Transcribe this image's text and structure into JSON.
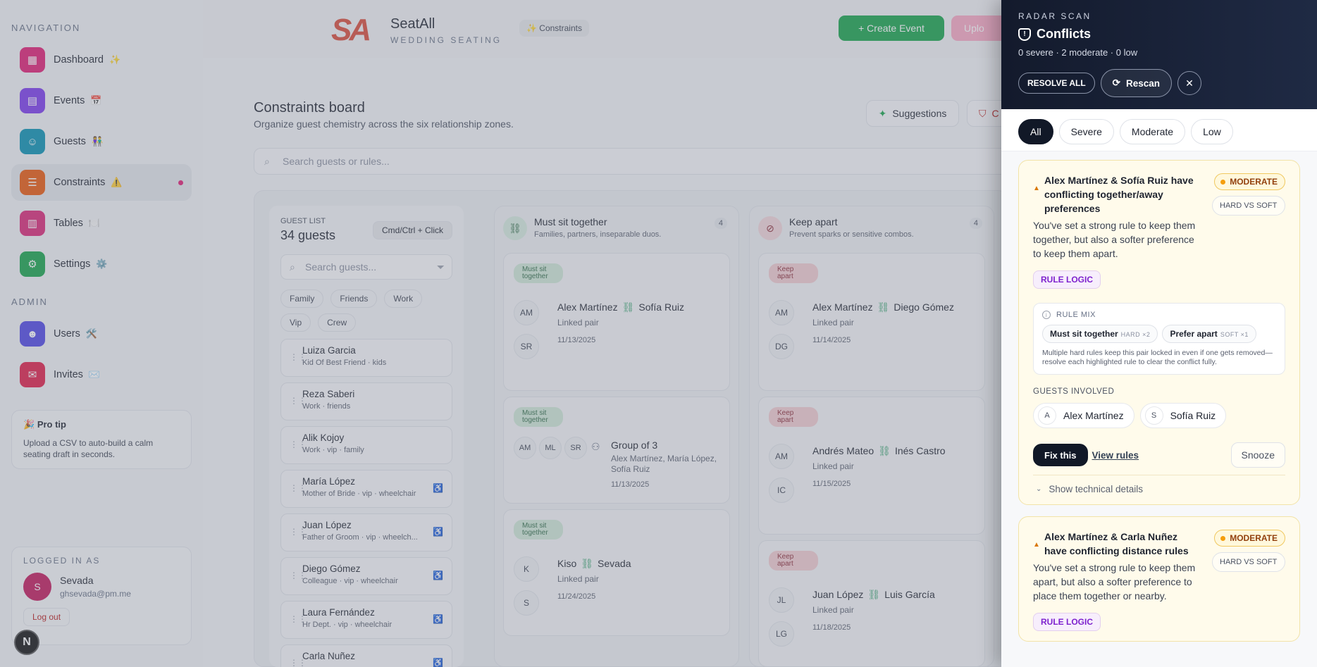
{
  "sidebar": {
    "nav_label": "NAVIGATION",
    "admin_label": "ADMIN",
    "items": [
      {
        "label": "Dashboard",
        "emoji": "✨",
        "icon": "dashboard-icon",
        "color": "#e11d74"
      },
      {
        "label": "Events",
        "emoji": "📅",
        "icon": "calendar-icon",
        "color": "#7c3aed"
      },
      {
        "label": "Guests",
        "emoji": "👫",
        "icon": "users-icon",
        "color": "#0891b2"
      },
      {
        "label": "Constraints",
        "emoji": "⚠️",
        "icon": "constraints-icon",
        "color": "#ea580c"
      },
      {
        "label": "Tables",
        "emoji": "🍽️",
        "icon": "table-icon",
        "color": "#db2777"
      },
      {
        "label": "Settings",
        "emoji": "⚙️",
        "icon": "settings-icon",
        "color": "#16a34a"
      }
    ],
    "admin_items": [
      {
        "label": "Users",
        "emoji": "🛠️",
        "icon": "user-admin-icon",
        "color": "#4f46e5"
      },
      {
        "label": "Invites",
        "emoji": "✉️",
        "icon": "mail-icon",
        "color": "#e11d48"
      }
    ],
    "tip_title": "Pro tip",
    "tip_text": "Upload a CSV to auto-build a calm seating draft in seconds.",
    "logged_label": "LOGGED IN AS",
    "user_initial": "S",
    "user_name": "Sevada",
    "user_email": "ghsevada@pm.me",
    "logout_label": "Log out",
    "n_badge": "N"
  },
  "header": {
    "logo_mark": "SA",
    "app_name": "SeatAll",
    "app_sub": "WEDDING SEATING",
    "crumb": "✨ Constraints",
    "create_label": "+ Create Event",
    "upload_label": "Uplo"
  },
  "board": {
    "title": "Constraints board",
    "subtitle": "Organize guest chemistry across the six relationship zones.",
    "suggestions_label": "Suggestions",
    "conflicts_label": "C",
    "search_placeholder": "Search guests or rules..."
  },
  "guest_list": {
    "label": "GUEST LIST",
    "count": "34 guests",
    "shortcut": "Cmd/Ctrl + Click",
    "search_placeholder": "Search guests...",
    "filters": [
      "Family",
      "Friends",
      "Work",
      "Vip",
      "Crew"
    ],
    "guests": [
      {
        "name": "Luiza Garcia",
        "meta": "Kid Of Best Friend · kids",
        "access": false
      },
      {
        "name": "Reza Saberi",
        "meta": "Work · friends",
        "access": false
      },
      {
        "name": "Alik Kojoy",
        "meta": "Work · vip · family",
        "access": false
      },
      {
        "name": "María López",
        "meta": "Mother of Bride · vip · wheelchair",
        "access": true
      },
      {
        "name": "Juan López",
        "meta": "Father of Groom · vip · wheelch...",
        "access": true
      },
      {
        "name": "Diego Gómez",
        "meta": "Colleague · vip · wheelchair",
        "access": true
      },
      {
        "name": "Laura Fernández",
        "meta": "Hr Dept. · vip · wheelchair",
        "access": true
      },
      {
        "name": "Carla Nuñez",
        "meta": "",
        "access": true
      }
    ]
  },
  "columns": {
    "together": {
      "title": "Must sit together",
      "subtitle": "Families, partners, inseparable duos.",
      "count": "4",
      "tag": "Must sit together",
      "cards": [
        {
          "i1": "AM",
          "i2": "SR",
          "a": "Alex Martínez",
          "b": "Sofía Ruiz",
          "meta": "Linked pair",
          "date": "11/13/2025"
        },
        {
          "i1": "AM",
          "i2": "ML",
          "i3": "SR",
          "group": "Group of 3",
          "members": "Alex Martínez, María López, Sofía Ruiz",
          "date": "11/13/2025"
        },
        {
          "i1": "K",
          "i2": "S",
          "a": "Kiso",
          "b": "Sevada",
          "meta": "Linked pair",
          "date": "11/24/2025"
        }
      ]
    },
    "apart": {
      "title": "Keep apart",
      "subtitle": "Prevent sparks or sensitive combos.",
      "count": "4",
      "tag": "Keep apart",
      "cards": [
        {
          "i1": "AM",
          "i2": "DG",
          "a": "Alex Martínez",
          "b": "Diego Gómez",
          "meta": "Linked pair",
          "date": "11/14/2025"
        },
        {
          "i1": "AM",
          "i2": "IC",
          "a": "Andrés Mateo",
          "b": "Inés Castro",
          "meta": "Linked pair",
          "date": "11/15/2025"
        },
        {
          "i1": "JL",
          "i2": "LG",
          "a": "Juan López",
          "b": "Luis García",
          "meta": "Linked pair",
          "date": "11/18/2025"
        }
      ]
    }
  },
  "panel": {
    "kicker": "RADAR SCAN",
    "title": "Conflicts",
    "summary": "0 severe · 2 moderate · 0 low",
    "resolve_label": "RESOLVE ALL",
    "rescan_label": "Rescan",
    "filters": [
      "All",
      "Severe",
      "Moderate",
      "Low"
    ],
    "conflicts": [
      {
        "title": "Alex Martínez & Sofía Ruiz have conflicting together/away preferences",
        "severity": "MODERATE",
        "kind": "HARD VS SOFT",
        "desc": "You've set a strong rule to keep them together, but also a softer preference to keep them apart.",
        "category": "RULE LOGIC",
        "mix_label": "RULE MIX",
        "mix": [
          {
            "label": "Must sit together",
            "note": "HARD ×2"
          },
          {
            "label": "Prefer apart",
            "note": "SOFT ×1"
          }
        ],
        "mix_note": "Multiple hard rules keep this pair locked in even if one gets removed—resolve each highlighted rule to clear the conflict fully.",
        "guests_label": "GUESTS INVOLVED",
        "guests": [
          {
            "initial": "A",
            "name": "Alex Martínez"
          },
          {
            "initial": "S",
            "name": "Sofía Ruiz"
          }
        ],
        "fix_label": "Fix this",
        "view_label": "View rules",
        "snooze_label": "Snooze",
        "details_label": "Show technical details"
      },
      {
        "title": "Alex Martínez & Carla Nuñez have conflicting distance rules",
        "severity": "MODERATE",
        "kind": "HARD VS SOFT",
        "desc": "You've set a strong rule to keep them apart, but also a softer preference to place them together or nearby.",
        "category": "RULE LOGIC"
      }
    ]
  }
}
